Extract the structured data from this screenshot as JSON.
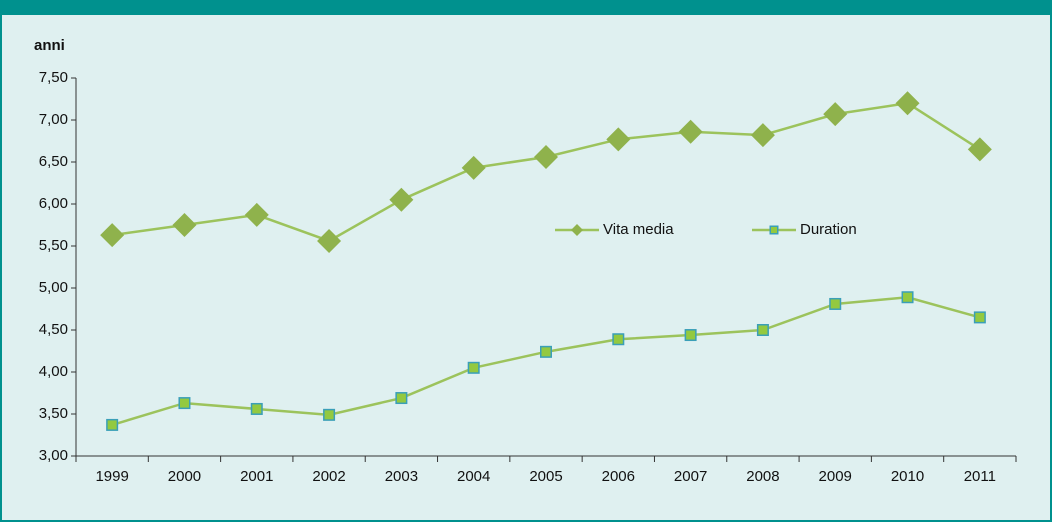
{
  "chart_data": {
    "type": "line",
    "y_label": "anni",
    "categories": [
      "1999",
      "2000",
      "2001",
      "2002",
      "2003",
      "2004",
      "2005",
      "2006",
      "2007",
      "2008",
      "2009",
      "2010",
      "2011"
    ],
    "series": [
      {
        "name": "Vita media",
        "color": "#9cc35c",
        "marker": "diamond",
        "marker_color": "#8fb24c",
        "values": [
          5.63,
          5.75,
          5.87,
          5.56,
          6.05,
          6.43,
          6.56,
          6.77,
          6.86,
          6.82,
          7.07,
          7.2,
          6.65
        ]
      },
      {
        "name": "Duration",
        "color": "#9cc35c",
        "marker": "square",
        "marker_color": "#93c940",
        "marker_edge": "#3a9fb8",
        "values": [
          3.37,
          3.63,
          3.56,
          3.49,
          3.69,
          4.05,
          4.24,
          4.39,
          4.44,
          4.5,
          4.81,
          4.89,
          4.65
        ]
      }
    ],
    "ylim": [
      3,
      7.5
    ],
    "yticks": [
      {
        "value": 3,
        "label": "3,00"
      },
      {
        "value": 3.5,
        "label": "3,50"
      },
      {
        "value": 4,
        "label": "4,00"
      },
      {
        "value": 4.5,
        "label": "4,50"
      },
      {
        "value": 5,
        "label": "5,00"
      },
      {
        "value": 5.5,
        "label": "5,50"
      },
      {
        "value": 6,
        "label": "6,00"
      },
      {
        "value": 6.5,
        "label": "6,50"
      },
      {
        "value": 7,
        "label": "7,00"
      },
      {
        "value": 7.5,
        "label": "7,50"
      }
    ],
    "grid": false,
    "legend": "center"
  }
}
